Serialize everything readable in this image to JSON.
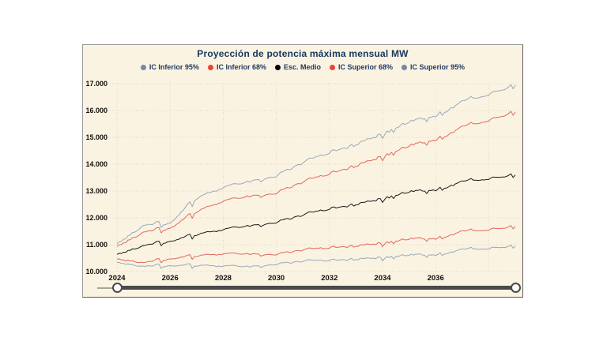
{
  "panel": {
    "background": "#FBF3E1",
    "border_color": "#9A9A9A"
  },
  "chart_data": {
    "type": "line",
    "title": "Proyección de potencia máxima mensual MW",
    "title_color": "#17375E",
    "xlabel": "",
    "ylabel": "",
    "xlim": [
      2024,
      2039
    ],
    "ylim": [
      10000,
      17000
    ],
    "grid": true,
    "grid_color": "#E2D6C4",
    "legend_position": "top",
    "x_tick_labels": [
      "2024",
      "2026",
      "2028",
      "2030",
      "2032",
      "2034",
      "2036"
    ],
    "x_tick_years": [
      2024,
      2026,
      2028,
      2030,
      2032,
      2034,
      2036
    ],
    "x_grid_years": [
      2024,
      2026,
      2028,
      2030,
      2032,
      2034,
      2036,
      2038
    ],
    "y_tick_labels": [
      "10.000",
      "11.000",
      "12.000",
      "13.000",
      "14.000",
      "15.000",
      "16.000",
      "17.000"
    ],
    "y_tick_values": [
      10000,
      11000,
      12000,
      13000,
      14000,
      15000,
      16000,
      17000
    ],
    "anchor_years": [
      2024,
      2025,
      2026,
      2027,
      2028,
      2029,
      2030,
      2031,
      2032,
      2033,
      2034,
      2035,
      2036,
      2037,
      2038,
      2039
    ],
    "series": [
      {
        "name": "IC Inferior 95%",
        "line_color": "#97A9BF",
        "dot_color": "#7388A9",
        "values": [
          10350,
          10180,
          10280,
          10200,
          10150,
          10180,
          10330,
          10380,
          10430,
          10500,
          10550,
          10600,
          10690,
          10780,
          10880,
          10990
        ]
      },
      {
        "name": "IC Inferior 68%",
        "line_color": "#E0685F",
        "dot_color": "#EF4136",
        "values": [
          10480,
          10320,
          10540,
          10560,
          10600,
          10650,
          10700,
          10800,
          10900,
          11000,
          11090,
          11200,
          11300,
          11450,
          11580,
          11720
        ]
      },
      {
        "name": "Esc. Medio",
        "line_color": "#1A1A1A",
        "dot_color": "#000000",
        "values": [
          10650,
          10950,
          11200,
          11350,
          11500,
          11700,
          11900,
          12100,
          12350,
          12550,
          12750,
          12950,
          13120,
          13300,
          13480,
          13650
        ]
      },
      {
        "name": "IC Superior 68%",
        "line_color": "#E0685F",
        "dot_color": "#EF4136",
        "values": [
          10950,
          11450,
          11700,
          12200,
          12550,
          12800,
          13000,
          13330,
          13660,
          14000,
          14330,
          14660,
          15000,
          15330,
          15660,
          16000
        ]
      },
      {
        "name": "IC Superior 95%",
        "line_color": "#97A9BF",
        "dot_color": "#7388A9",
        "values": [
          11050,
          11700,
          11900,
          12700,
          13050,
          13350,
          13650,
          14050,
          14450,
          14800,
          15170,
          15550,
          15900,
          16270,
          16630,
          17000
        ]
      }
    ]
  },
  "slider": {
    "bar_color": "#4A4A4A",
    "handle_border_color": "#4A4A4A"
  }
}
